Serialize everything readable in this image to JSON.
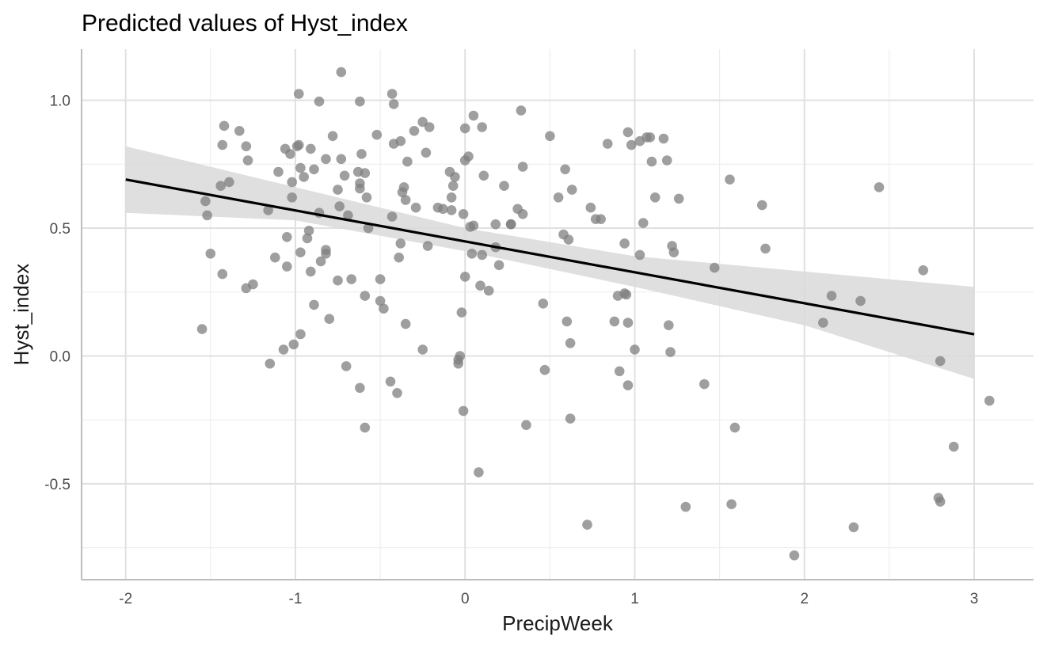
{
  "chart_data": {
    "type": "scatter",
    "title": "Predicted values of Hyst_index",
    "xlabel": "PrecipWeek",
    "ylabel": "Hyst_index",
    "xlim": [
      -2.26,
      3.35
    ],
    "ylim": [
      -0.875,
      1.2
    ],
    "xticks": [
      -2,
      -1,
      0,
      1,
      2,
      3
    ],
    "xtick_labels": [
      "-2",
      "-1",
      "0",
      "1",
      "2",
      "3"
    ],
    "yticks": [
      -0.5,
      0.0,
      0.5,
      1.0
    ],
    "ytick_labels": [
      "-0.5",
      "0.0",
      "0.5",
      "1.0"
    ],
    "grid": true,
    "point_color": "#7f7f7f",
    "line_color": "#000000",
    "band_color": "#d9d9d9",
    "fit_line": {
      "x": [
        -2,
        3
      ],
      "y": [
        0.69,
        0.085
      ]
    },
    "confidence_band": {
      "x": [
        -2,
        -1,
        0,
        1,
        2,
        3
      ],
      "upper": [
        0.82,
        0.66,
        0.5,
        0.39,
        0.33,
        0.27
      ],
      "lower": [
        0.56,
        0.53,
        0.41,
        0.27,
        0.12,
        -0.09
      ]
    },
    "points": [
      [
        -1.55,
        0.105
      ],
      [
        -1.53,
        0.605
      ],
      [
        -1.52,
        0.55
      ],
      [
        -1.5,
        0.4
      ],
      [
        -1.44,
        0.665
      ],
      [
        -1.43,
        0.825
      ],
      [
        -1.43,
        0.32
      ],
      [
        -1.42,
        0.9
      ],
      [
        -1.39,
        0.68
      ],
      [
        -1.33,
        0.88
      ],
      [
        -1.29,
        0.82
      ],
      [
        -1.28,
        0.765
      ],
      [
        -1.29,
        0.265
      ],
      [
        -1.25,
        0.28
      ],
      [
        -1.16,
        0.57
      ],
      [
        -1.15,
        -0.03
      ],
      [
        -1.12,
        0.385
      ],
      [
        -1.1,
        0.72
      ],
      [
        -1.07,
        0.025
      ],
      [
        -1.06,
        0.81
      ],
      [
        -1.05,
        0.35
      ],
      [
        -1.05,
        0.465
      ],
      [
        -1.03,
        0.79
      ],
      [
        -1.02,
        0.68
      ],
      [
        -1.02,
        0.62
      ],
      [
        -1.01,
        0.045
      ],
      [
        -0.99,
        0.82
      ],
      [
        -0.98,
        0.825
      ],
      [
        -0.98,
        1.025
      ],
      [
        -0.97,
        0.735
      ],
      [
        -0.97,
        0.405
      ],
      [
        -0.97,
        0.085
      ],
      [
        -0.95,
        0.7
      ],
      [
        -0.93,
        0.46
      ],
      [
        -0.92,
        0.49
      ],
      [
        -0.91,
        0.33
      ],
      [
        -0.91,
        0.81
      ],
      [
        -0.89,
        0.73
      ],
      [
        -0.89,
        0.2
      ],
      [
        -0.86,
        0.995
      ],
      [
        -0.86,
        0.56
      ],
      [
        -0.85,
        0.37
      ],
      [
        -0.82,
        0.77
      ],
      [
        -0.82,
        0.4
      ],
      [
        -0.82,
        0.415
      ],
      [
        -0.8,
        0.145
      ],
      [
        -0.78,
        0.86
      ],
      [
        -0.75,
        0.65
      ],
      [
        -0.75,
        0.295
      ],
      [
        -0.74,
        0.585
      ],
      [
        -0.73,
        1.11
      ],
      [
        -0.73,
        0.77
      ],
      [
        -0.71,
        0.705
      ],
      [
        -0.7,
        -0.04
      ],
      [
        -0.69,
        0.55
      ],
      [
        -0.67,
        0.3
      ],
      [
        -0.63,
        0.72
      ],
      [
        -0.62,
        0.995
      ],
      [
        -0.62,
        0.675
      ],
      [
        -0.62,
        0.655
      ],
      [
        -0.62,
        -0.125
      ],
      [
        -0.61,
        0.79
      ],
      [
        -0.59,
        0.715
      ],
      [
        -0.59,
        0.235
      ],
      [
        -0.59,
        -0.28
      ],
      [
        -0.58,
        0.62
      ],
      [
        -0.57,
        0.5
      ],
      [
        -0.52,
        0.865
      ],
      [
        -0.5,
        0.3
      ],
      [
        -0.5,
        0.215
      ],
      [
        -0.48,
        0.185
      ],
      [
        -0.44,
        -0.1
      ],
      [
        -0.43,
        0.545
      ],
      [
        -0.43,
        1.025
      ],
      [
        -0.42,
        0.83
      ],
      [
        -0.42,
        0.985
      ],
      [
        -0.4,
        -0.145
      ],
      [
        -0.39,
        0.385
      ],
      [
        -0.38,
        0.44
      ],
      [
        -0.38,
        0.84
      ],
      [
        -0.37,
        0.64
      ],
      [
        -0.36,
        0.66
      ],
      [
        -0.35,
        0.125
      ],
      [
        -0.35,
        0.61
      ],
      [
        -0.34,
        0.76
      ],
      [
        -0.3,
        0.88
      ],
      [
        -0.29,
        0.58
      ],
      [
        -0.25,
        0.915
      ],
      [
        -0.25,
        0.025
      ],
      [
        -0.23,
        0.795
      ],
      [
        -0.22,
        0.43
      ],
      [
        -0.21,
        0.895
      ],
      [
        -0.16,
        0.58
      ],
      [
        -0.13,
        0.575
      ],
      [
        -0.09,
        0.72
      ],
      [
        -0.08,
        0.62
      ],
      [
        -0.08,
        0.57
      ],
      [
        -0.07,
        0.665
      ],
      [
        -0.06,
        0.7
      ],
      [
        -0.04,
        -0.03
      ],
      [
        -0.04,
        -0.015
      ],
      [
        -0.03,
        0.0
      ],
      [
        -0.02,
        0.17
      ],
      [
        -0.01,
        0.555
      ],
      [
        -0.01,
        -0.215
      ],
      [
        0.0,
        0.765
      ],
      [
        0.0,
        0.31
      ],
      [
        0.0,
        0.89
      ],
      [
        0.02,
        0.78
      ],
      [
        0.03,
        0.505
      ],
      [
        0.04,
        0.4
      ],
      [
        0.05,
        0.94
      ],
      [
        0.05,
        0.51
      ],
      [
        0.08,
        -0.455
      ],
      [
        0.09,
        0.275
      ],
      [
        0.1,
        0.895
      ],
      [
        0.1,
        0.395
      ],
      [
        0.11,
        0.705
      ],
      [
        0.14,
        0.255
      ],
      [
        0.18,
        0.425
      ],
      [
        0.18,
        0.515
      ],
      [
        0.2,
        0.355
      ],
      [
        0.23,
        0.665
      ],
      [
        0.27,
        0.515
      ],
      [
        0.27,
        0.515
      ],
      [
        0.31,
        0.575
      ],
      [
        0.33,
        0.96
      ],
      [
        0.34,
        0.74
      ],
      [
        0.34,
        0.555
      ],
      [
        0.36,
        -0.27
      ],
      [
        0.46,
        0.205
      ],
      [
        0.47,
        -0.055
      ],
      [
        0.5,
        0.86
      ],
      [
        0.55,
        0.62
      ],
      [
        0.58,
        0.475
      ],
      [
        0.59,
        0.73
      ],
      [
        0.6,
        0.135
      ],
      [
        0.61,
        0.455
      ],
      [
        0.62,
        0.05
      ],
      [
        0.62,
        -0.245
      ],
      [
        0.63,
        0.65
      ],
      [
        0.72,
        -0.66
      ],
      [
        0.74,
        0.58
      ],
      [
        0.77,
        0.535
      ],
      [
        0.8,
        0.535
      ],
      [
        0.84,
        0.83
      ],
      [
        0.88,
        0.135
      ],
      [
        0.9,
        0.235
      ],
      [
        0.91,
        -0.06
      ],
      [
        0.94,
        0.44
      ],
      [
        0.94,
        0.245
      ],
      [
        0.95,
        0.24
      ],
      [
        0.96,
        0.875
      ],
      [
        0.96,
        0.13
      ],
      [
        0.96,
        -0.115
      ],
      [
        0.98,
        0.825
      ],
      [
        1.0,
        0.025
      ],
      [
        1.03,
        0.395
      ],
      [
        1.03,
        0.84
      ],
      [
        1.05,
        0.52
      ],
      [
        1.07,
        0.855
      ],
      [
        1.09,
        0.855
      ],
      [
        1.1,
        0.76
      ],
      [
        1.12,
        0.62
      ],
      [
        1.17,
        0.85
      ],
      [
        1.19,
        0.765
      ],
      [
        1.2,
        0.12
      ],
      [
        1.21,
        0.015
      ],
      [
        1.22,
        0.43
      ],
      [
        1.23,
        0.405
      ],
      [
        1.26,
        0.615
      ],
      [
        1.3,
        -0.59
      ],
      [
        1.41,
        -0.11
      ],
      [
        1.47,
        0.345
      ],
      [
        1.56,
        0.69
      ],
      [
        1.57,
        -0.58
      ],
      [
        1.59,
        -0.28
      ],
      [
        1.75,
        0.59
      ],
      [
        1.77,
        0.42
      ],
      [
        1.94,
        -0.78
      ],
      [
        2.11,
        0.13
      ],
      [
        2.16,
        0.235
      ],
      [
        2.29,
        -0.67
      ],
      [
        2.33,
        0.215
      ],
      [
        2.44,
        0.66
      ],
      [
        2.7,
        0.335
      ],
      [
        2.79,
        -0.555
      ],
      [
        2.8,
        -0.57
      ],
      [
        2.8,
        -0.02
      ],
      [
        2.88,
        -0.355
      ],
      [
        3.09,
        -0.175
      ]
    ]
  }
}
